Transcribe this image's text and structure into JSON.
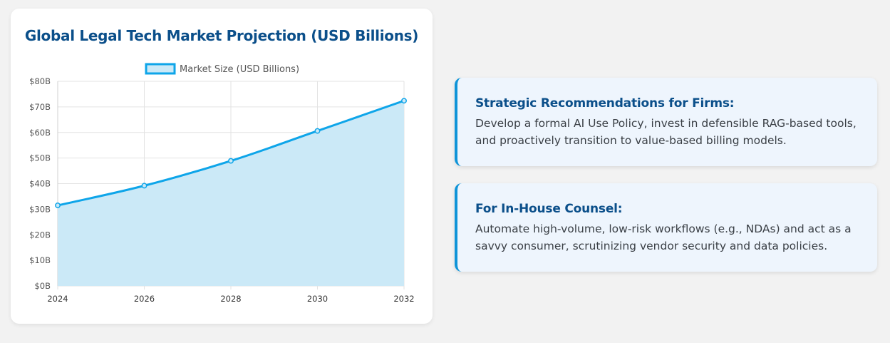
{
  "chart_data": {
    "type": "area",
    "title": "Global Legal Tech Market Projection (USD Billions)",
    "x": [
      "2024",
      "2026",
      "2028",
      "2030",
      "2032"
    ],
    "series": [
      {
        "name": "Market Size (USD Billions)",
        "values": [
          31.5,
          39.2,
          48.9,
          60.6,
          72.4
        ]
      }
    ],
    "ylim": [
      0,
      80
    ],
    "y_ticks": [
      "$0B",
      "$10B",
      "$20B",
      "$30B",
      "$40B",
      "$50B",
      "$60B",
      "$70B",
      "$80B"
    ],
    "grid": true,
    "legend_position": "top",
    "colors": {
      "line": "#0ea5e9",
      "fill": "#cbe9f7",
      "grid": "#e3e3e3"
    }
  },
  "cards": [
    {
      "heading": "Strategic Recommendations for Firms:",
      "text": "Develop a formal AI Use Policy, invest in defensible RAG-based tools, and proactively transition to value-based billing models."
    },
    {
      "heading": "For In-House Counsel:",
      "text": "Automate high-volume, low-risk workflows (e.g., NDAs) and act as a savvy consumer, scrutinizing vendor security and data policies."
    }
  ]
}
